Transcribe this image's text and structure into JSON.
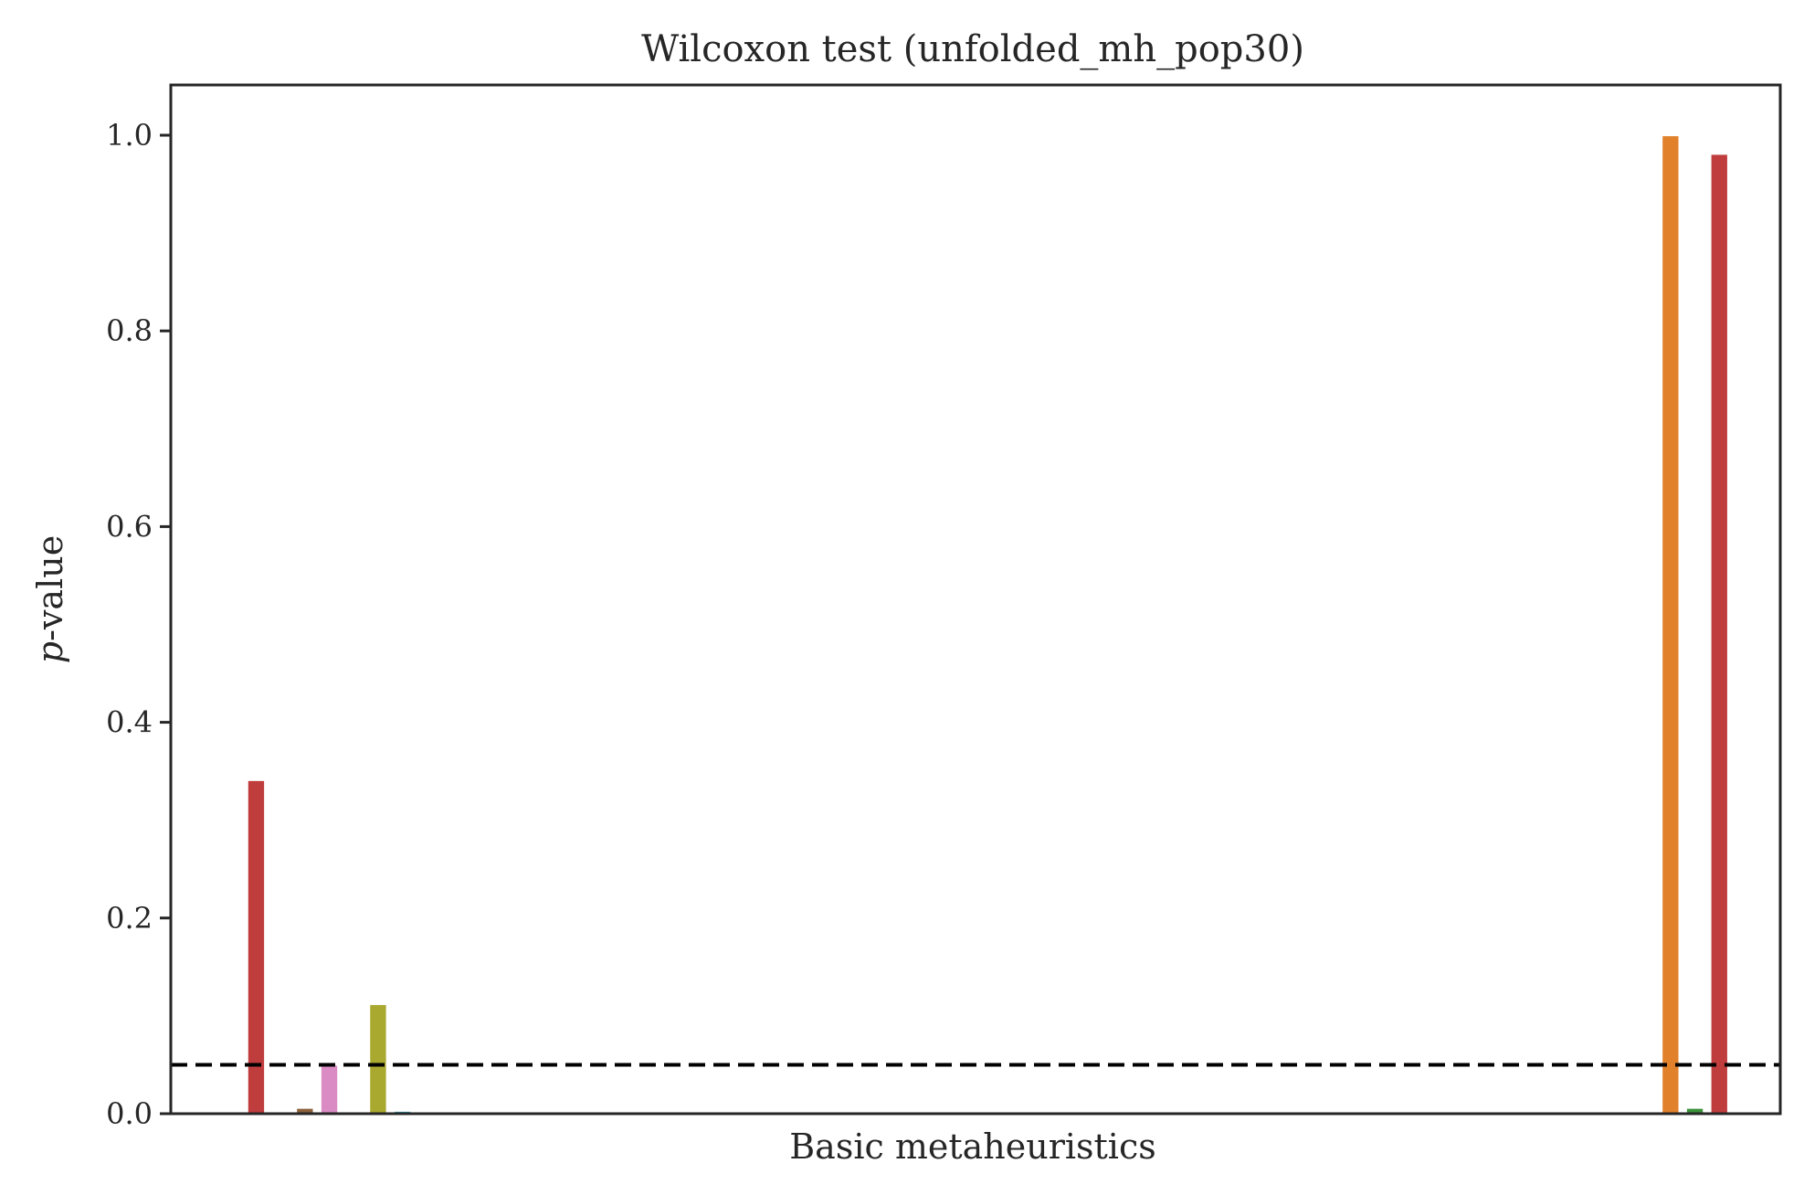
{
  "chart_data": {
    "type": "bar",
    "title": "Wilcoxon test (unfolded_mh_pop30)",
    "xlabel": "Basic metaheuristics",
    "ylabel_italic": "p",
    "ylabel_rest": "-value",
    "ylim": [
      0,
      1.05
    ],
    "yticks": [
      0.0,
      0.2,
      0.4,
      0.6,
      0.8,
      1.0
    ],
    "ytick_labels": [
      "0.0",
      "0.2",
      "0.4",
      "0.6",
      "0.8",
      "1.0"
    ],
    "grid": false,
    "reference_line": {
      "y": 0.05,
      "style": "dashed",
      "color": "#000000"
    },
    "bars": [
      {
        "slot": 3,
        "value": 0.34,
        "color": "#c03d3e"
      },
      {
        "slot": 5,
        "value": 0.005,
        "color": "#8c613c"
      },
      {
        "slot": 6,
        "value": 0.049,
        "color": "#da8bc3"
      },
      {
        "slot": 8,
        "value": 0.111,
        "color": "#a9a82f"
      },
      {
        "slot": 9,
        "value": 0.002,
        "color": "#3ba3b6"
      },
      {
        "slot": 61,
        "value": 0.999,
        "color": "#e1812c"
      },
      {
        "slot": 62,
        "value": 0.005,
        "color": "#3a923a"
      },
      {
        "slot": 63,
        "value": 0.98,
        "color": "#c03d3e"
      }
    ],
    "slots_total": 66
  }
}
